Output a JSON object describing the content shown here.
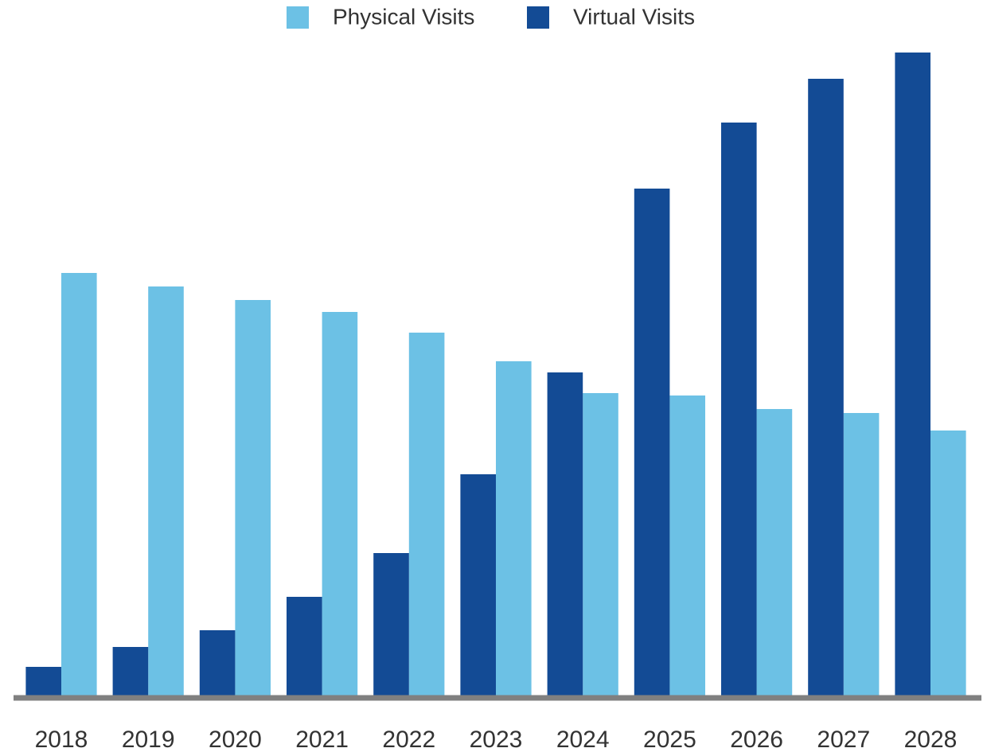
{
  "chart_data": {
    "type": "bar",
    "categories": [
      "2018",
      "2019",
      "2020",
      "2021",
      "2022",
      "2023",
      "2024",
      "2025",
      "2026",
      "2027",
      "2028"
    ],
    "series": [
      {
        "name": "Physical Visits",
        "color": "#6cc1e5",
        "values": [
          532,
          515,
          498,
          483,
          457,
          421,
          381,
          378,
          361,
          356,
          334
        ]
      },
      {
        "name": "Virtual Visits",
        "color": "#134b95",
        "values": [
          37,
          62,
          83,
          125,
          180,
          279,
          407,
          638,
          721,
          776,
          809
        ]
      }
    ],
    "ylim": [
      0,
      810
    ],
    "legend": "top"
  }
}
